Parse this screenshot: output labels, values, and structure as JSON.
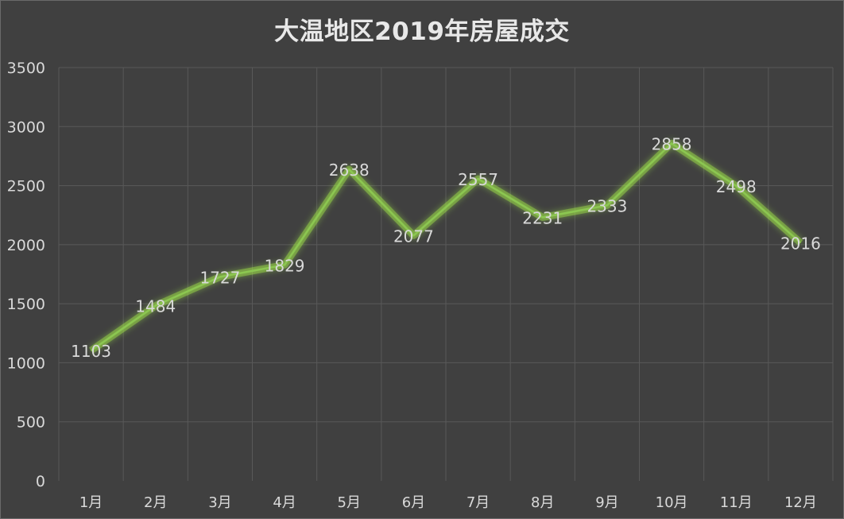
{
  "chart_data": {
    "type": "line",
    "title": "大温地区2019年房屋成交",
    "categories": [
      "1月",
      "2月",
      "3月",
      "4月",
      "5月",
      "6月",
      "7月",
      "8月",
      "9月",
      "10月",
      "11月",
      "12月"
    ],
    "series": [
      {
        "values": [
          1103,
          1484,
          1727,
          1829,
          2638,
          2077,
          2557,
          2231,
          2333,
          2858,
          2498,
          2016
        ]
      }
    ],
    "ylim": [
      0,
      3500
    ],
    "yticks": [
      0,
      500,
      1000,
      1500,
      2000,
      2500,
      3000,
      3500
    ],
    "grid": true,
    "data_labels": true,
    "colors": {
      "background": "#404040",
      "grid": "#595959",
      "line": "#8cc751",
      "glow": "#9ee04a",
      "text": "#d9d9d9"
    }
  }
}
